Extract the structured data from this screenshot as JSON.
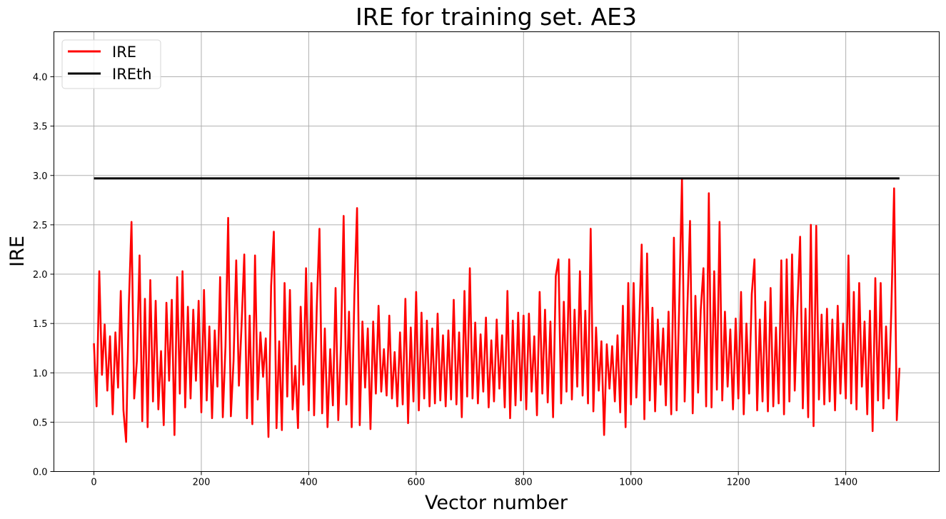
{
  "chart_data": {
    "type": "line",
    "title": "IRE for training set. AE3",
    "xlabel": "Vector number",
    "ylabel": "IRE",
    "xlim": [
      -74.5,
      1574
    ],
    "ylim": [
      0,
      4.456
    ],
    "x_ticks": [
      "0",
      "200",
      "400",
      "600",
      "800",
      "1000",
      "1200",
      "1400"
    ],
    "y_ticks": [
      "0.0",
      "0.5",
      "1.0",
      "1.5",
      "2.0",
      "2.5",
      "3.0",
      "3.5",
      "4.0"
    ],
    "grid": true,
    "legend_position": "top-left",
    "series": [
      {
        "name": "IRE",
        "color": "#ff0000",
        "x_start": 0,
        "x_step": 5,
        "values": [
          1.3,
          0.66,
          2.03,
          0.98,
          1.49,
          0.82,
          1.37,
          0.58,
          1.41,
          0.85,
          1.83,
          0.62,
          0.3,
          1.68,
          2.53,
          0.74,
          1.12,
          2.19,
          0.51,
          1.75,
          0.45,
          1.94,
          0.71,
          1.73,
          0.63,
          1.22,
          0.47,
          1.71,
          0.92,
          1.74,
          0.37,
          1.97,
          0.79,
          2.03,
          0.65,
          1.67,
          0.74,
          1.64,
          0.92,
          1.73,
          0.6,
          1.84,
          0.72,
          1.47,
          0.54,
          1.43,
          0.86,
          1.97,
          0.55,
          1.27,
          2.57,
          0.56,
          1.12,
          2.14,
          0.87,
          1.49,
          2.2,
          0.54,
          1.58,
          0.48,
          2.19,
          0.73,
          1.41,
          0.96,
          1.35,
          0.35,
          1.88,
          2.43,
          0.44,
          1.32,
          0.42,
          1.91,
          0.76,
          1.84,
          0.63,
          1.07,
          0.44,
          1.67,
          0.88,
          2.06,
          0.62,
          1.91,
          0.57,
          1.67,
          2.46,
          0.59,
          1.45,
          0.45,
          1.24,
          0.67,
          1.86,
          0.52,
          1.28,
          2.59,
          0.68,
          1.62,
          0.45,
          1.79,
          2.67,
          0.47,
          1.52,
          0.85,
          1.45,
          0.43,
          1.52,
          0.79,
          1.68,
          0.81,
          1.24,
          0.77,
          1.58,
          0.74,
          1.21,
          0.66,
          1.41,
          0.68,
          1.75,
          0.49,
          1.46,
          0.71,
          1.82,
          0.62,
          1.61,
          0.74,
          1.53,
          0.66,
          1.45,
          0.69,
          1.6,
          0.72,
          1.38,
          0.66,
          1.43,
          0.73,
          1.74,
          0.68,
          1.41,
          0.55,
          1.83,
          0.76,
          2.06,
          0.74,
          1.51,
          0.69,
          1.39,
          0.81,
          1.56,
          0.65,
          1.33,
          0.71,
          1.54,
          0.84,
          1.38,
          0.65,
          1.83,
          0.54,
          1.53,
          0.67,
          1.61,
          0.72,
          1.58,
          0.63,
          1.6,
          0.81,
          1.37,
          0.57,
          1.82,
          0.79,
          1.64,
          0.7,
          1.52,
          0.55,
          1.98,
          2.15,
          0.69,
          1.72,
          0.81,
          2.15,
          0.73,
          1.64,
          0.86,
          2.03,
          0.77,
          1.63,
          0.69,
          2.46,
          0.61,
          1.46,
          0.82,
          1.32,
          0.37,
          1.29,
          0.84,
          1.27,
          0.71,
          1.38,
          0.6,
          1.68,
          0.45,
          1.91,
          0.68,
          1.91,
          0.75,
          1.42,
          2.3,
          0.53,
          2.21,
          0.72,
          1.66,
          0.61,
          1.54,
          0.88,
          1.45,
          0.67,
          1.62,
          0.58,
          2.37,
          0.62,
          1.72,
          2.97,
          0.71,
          1.65,
          2.54,
          0.59,
          1.78,
          0.8,
          1.64,
          2.06,
          0.66,
          2.82,
          0.65,
          2.03,
          0.83,
          2.53,
          0.72,
          1.62,
          0.86,
          1.44,
          0.63,
          1.55,
          0.74,
          1.82,
          0.58,
          1.5,
          0.79,
          1.8,
          2.15,
          0.62,
          1.54,
          0.71,
          1.72,
          0.61,
          1.86,
          0.66,
          1.46,
          0.69,
          2.14,
          0.58,
          2.15,
          0.71,
          2.2,
          0.82,
          1.68,
          2.38,
          0.64,
          1.65,
          0.55,
          2.5,
          0.46,
          2.49,
          0.73,
          1.59,
          0.68,
          1.65,
          0.71,
          1.54,
          0.62,
          1.68,
          0.79,
          1.5,
          0.74,
          2.19,
          0.69,
          1.82,
          0.63,
          1.91,
          0.86,
          1.52,
          0.58,
          1.63,
          0.41,
          1.96,
          0.72,
          1.91,
          0.64,
          1.47,
          0.74,
          1.67,
          2.87,
          0.52,
          1.05
        ]
      },
      {
        "name": "IREth",
        "color": "#000000",
        "x": [
          0,
          1500
        ],
        "values": [
          2.97,
          2.97
        ]
      }
    ]
  }
}
